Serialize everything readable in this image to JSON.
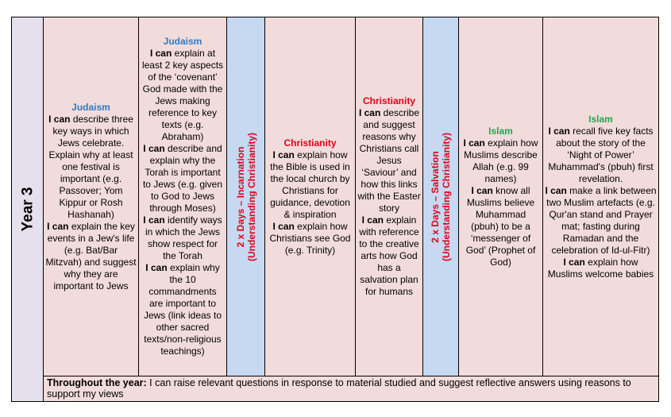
{
  "year_label": "Year 3",
  "colors": {
    "judaism": "#2e7bc4",
    "christianity": "#e3001b",
    "islam": "#1fa84f",
    "cell_bg": "#f2dcdb",
    "block_bg": "#c6d9f1",
    "year_bg": "#e5e0ec"
  },
  "cells": [
    {
      "heading": "Judaism",
      "faith": "judaism",
      "items": [
        {
          "lead": "I can",
          "text": " describe three key ways in which Jews celebrate.  Explain why at least one festival is important (e.g. Passover; Yom Kippur or Rosh Hashanah)"
        },
        {
          "lead": "I can",
          "text": " explain the key events in a Jew's life (e.g. Bat/Bar Mitzvah) and suggest why they are important to Jews"
        }
      ]
    },
    {
      "heading": "Judaism",
      "faith": "judaism",
      "items": [
        {
          "lead": "I can",
          "text": " explain at least 2 key aspects of the ‘covenant’ God made with the Jews making reference to key texts (e.g. Abraham)"
        },
        {
          "lead": "I can",
          "text": " describe and explain why the Torah is important to Jews (e.g. given to God to Jews through Moses)"
        },
        {
          "lead": "I can",
          "text": " identify ways in which the Jews show respect for the Torah"
        },
        {
          "lead": "I can",
          "text": " explain why the 10 commandments are important to Jews (link ideas to other sacred texts/non-religious teachings)"
        }
      ]
    },
    {
      "block": true,
      "line1": "2 x Days – Incarnation",
      "line2": "(Understanding Christianity)"
    },
    {
      "heading": "Christianity",
      "faith": "christianity",
      "items": [
        {
          "lead": "I can",
          "text": " explain how the Bible is used in the local church by Christians for guidance, devotion & inspiration"
        },
        {
          "lead": "I can",
          "text": " explain how Christians see God (e.g. Trinity)"
        }
      ]
    },
    {
      "heading": "Christianity",
      "faith": "christianity",
      "items": [
        {
          "lead": "I can",
          "text": " describe and suggest reasons why Christians call Jesus ‘Saviour’ and how this links with the Easter story"
        },
        {
          "lead": "I can",
          "text": " explain with reference to the creative arts how God has a salvation plan for humans"
        }
      ]
    },
    {
      "block": true,
      "line1": "2 x Days – Salvation",
      "line2": "(Understanding Christianity)"
    },
    {
      "heading": "Islam",
      "faith": "islam",
      "items": [
        {
          "lead": "I can",
          "text": " explain how Muslims describe Allah (e.g. 99 names)"
        },
        {
          "lead": "I can",
          "text": " know all Muslims believe Muhammad (pbuh) to be a ‘messenger of God’ (Prophet of God)"
        }
      ]
    },
    {
      "heading": "Islam",
      "faith": "islam",
      "items": [
        {
          "lead": "I can",
          "text": " recall five key facts about the story of the ‘Night of Power’ Muhammad's (pbuh) first revelation."
        },
        {
          "lead": "I can",
          "text": " make a link between two Muslim artefacts (e.g. Qur'an stand and Prayer mat; fasting during Ramadan and the celebration of Id-ul-Fitr)"
        },
        {
          "lead": "I can",
          "text": " explain how Muslims welcome babies"
        }
      ]
    }
  ],
  "footer": {
    "lead": "Throughout the year:",
    "text": " I can raise relevant questions in response to material studied and suggest reflective answers using reasons to support my views"
  }
}
